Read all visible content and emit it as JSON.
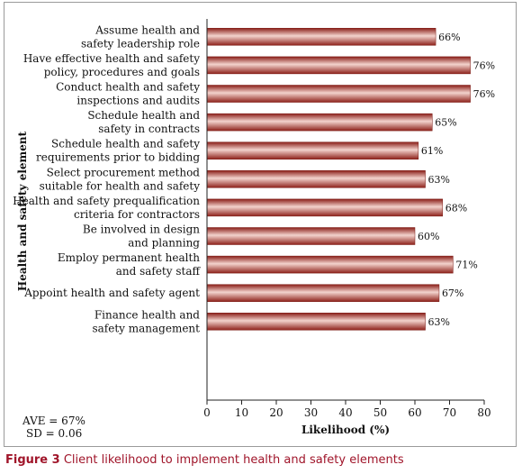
{
  "chart_data": {
    "type": "bar",
    "orientation": "horizontal",
    "categories": [
      [
        "Assume health and",
        "safety leadership role"
      ],
      [
        "Have effective health and safety",
        "policy, procedures and goals"
      ],
      [
        "Conduct health and safety",
        "inspections and audits"
      ],
      [
        "Schedule health and",
        "safety in contracts"
      ],
      [
        "Schedule health and safety",
        "requirements prior to bidding"
      ],
      [
        "Select procurement method",
        "suitable for health and safety"
      ],
      [
        "Health and safety prequalification",
        "criteria for contractors"
      ],
      [
        "Be involved in design",
        "and planning"
      ],
      [
        "Employ permanent health",
        "and safety staff"
      ],
      [
        "Appoint health and safety agent"
      ],
      [
        "Finance health and",
        "safety management"
      ]
    ],
    "values": [
      66,
      76,
      76,
      65,
      61,
      63,
      68,
      60,
      71,
      67,
      63
    ],
    "value_labels": [
      "66%",
      "76%",
      "76%",
      "65%",
      "61%",
      "63%",
      "68%",
      "60%",
      "71%",
      "67%",
      "63%"
    ],
    "xlabel": "Likelihood (%)",
    "ylabel": "Health and safety element",
    "xlim": [
      0,
      80
    ],
    "xticks": [
      "0",
      "10",
      "20",
      "30",
      "40",
      "50",
      "60",
      "70",
      "80"
    ],
    "grid": false,
    "bar_color": "#a8302a",
    "stats": [
      "AVE = 67%",
      "SD = 0.06"
    ]
  },
  "caption": {
    "label": "Figure 3",
    "text": "Client likelihood to implement health and safety elements"
  }
}
